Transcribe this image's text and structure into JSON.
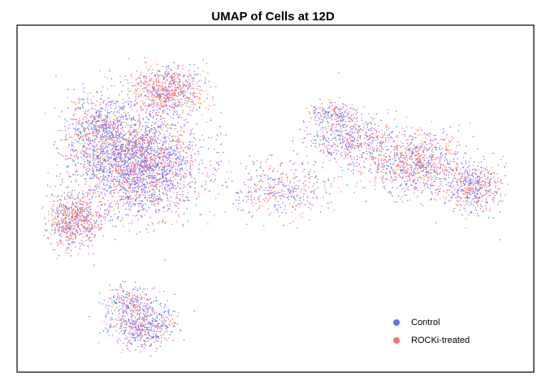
{
  "chart_data": {
    "type": "scatter",
    "title": "UMAP of Cells at 12D",
    "xlabel": "",
    "ylabel": "",
    "grid": false,
    "axes_visible": false,
    "legend_position": "bottom-right",
    "series": [
      {
        "name": "Control",
        "color": "#6470FF"
      },
      {
        "name": "ROCKi-treated",
        "color": "#F8766D"
      }
    ]
  }
}
